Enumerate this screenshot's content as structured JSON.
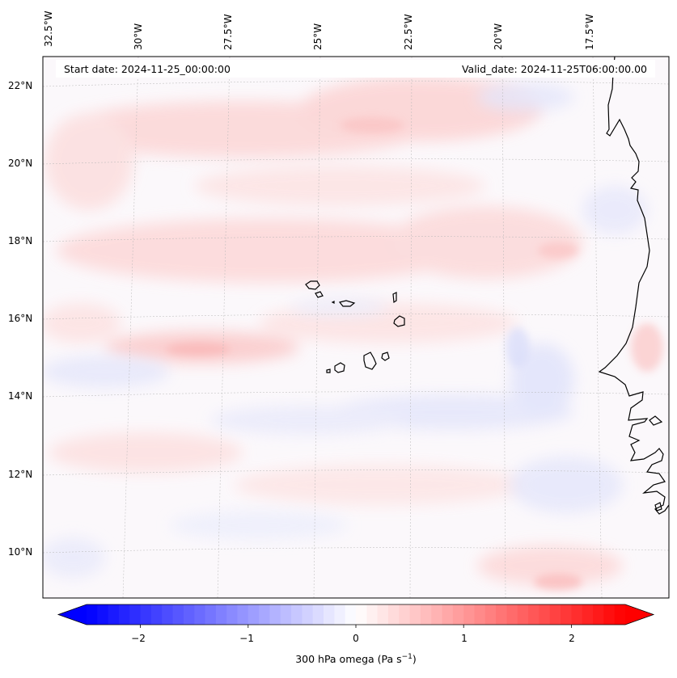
{
  "map": {
    "start_date_label": "Start date: 2024-11-25_00:00:00",
    "valid_date_label": "Valid_date: 2024-11-25T06:00:00.00",
    "lon_labels": [
      "32.5°W",
      "30°W",
      "27.5°W",
      "25°W",
      "22.5°W",
      "20°W",
      "17.5°W"
    ],
    "lat_labels": [
      "22°N",
      "20°N",
      "18°N",
      "16°N",
      "14°N",
      "12°N",
      "10°N"
    ],
    "field": "omega",
    "level": "300 hPa"
  },
  "colorbar": {
    "title": "300 hPa omega (Pa s",
    "title_unit_exp": "−1",
    "title_end": ")",
    "ticks": [
      "−2",
      "−1",
      "0",
      "1",
      "2"
    ],
    "vmin": -2.5,
    "vmax": 2.5,
    "min_color": "#0000ff",
    "mid_color": "#ffffff",
    "max_color": "#ff0000"
  }
}
